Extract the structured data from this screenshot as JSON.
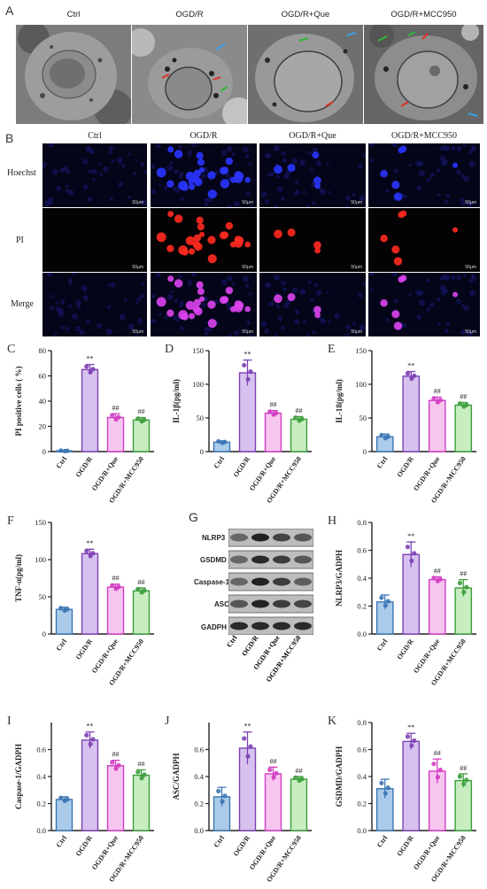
{
  "panel_letters": [
    "A",
    "B",
    "C",
    "D",
    "E",
    "F",
    "G",
    "H",
    "I",
    "J",
    "K"
  ],
  "groups": [
    "Ctrl",
    "OGD/R",
    "OGD/R+Que",
    "OGD/R+MCC950"
  ],
  "fluorescence": {
    "rows": [
      "Hoechst",
      "PI",
      "Merge"
    ],
    "scale_bar": "50μm"
  },
  "blot": {
    "proteins": [
      "NLRP3",
      "GSDMD",
      "Caspase-1",
      "ASC",
      "GADPH"
    ]
  },
  "chart_data": [
    {
      "panel": "C",
      "type": "bar",
      "ylabel": "PI positive cells ( %)",
      "ylim": [
        0,
        80
      ],
      "yticks": [
        0,
        20,
        40,
        60,
        80
      ],
      "categories": [
        "Ctrl",
        "OGD/R",
        "OGD/R+Que",
        "OGD/R+MCC950"
      ],
      "values": [
        0.6,
        65,
        27,
        25
      ],
      "errors": [
        0.4,
        4,
        3,
        2
      ],
      "annotations": [
        "",
        "**",
        "##",
        "##"
      ]
    },
    {
      "panel": "D",
      "type": "bar",
      "ylabel": "IL-1β(pg/ml)",
      "ylim": [
        0,
        150
      ],
      "yticks": [
        0,
        50,
        100,
        150
      ],
      "categories": [
        "Ctrl",
        "OGD/R",
        "OGD/R+Que",
        "OGD/R+MCC950"
      ],
      "values": [
        14,
        117,
        57,
        48
      ],
      "errors": [
        2,
        19,
        4,
        4
      ],
      "annotations": [
        "",
        "**",
        "##",
        "##"
      ]
    },
    {
      "panel": "E",
      "type": "bar",
      "ylabel": "IL-18(pg/ml)",
      "ylim": [
        0,
        150
      ],
      "yticks": [
        0,
        50,
        100,
        150
      ],
      "categories": [
        "Ctrl",
        "OGD/R",
        "OGD/R+Que",
        "OGD/R+MCC950"
      ],
      "values": [
        22,
        112,
        76,
        69
      ],
      "errors": [
        4,
        7,
        5,
        4
      ],
      "annotations": [
        "",
        "**",
        "##",
        "##"
      ]
    },
    {
      "panel": "F",
      "type": "bar",
      "ylabel": "TNF-α(pg/ml)",
      "ylim": [
        0,
        150
      ],
      "yticks": [
        0,
        50,
        100,
        150
      ],
      "categories": [
        "Ctrl",
        "OGD/R",
        "OGD/R+Que",
        "OGD/R+MCC950"
      ],
      "values": [
        33,
        108,
        63,
        58
      ],
      "errors": [
        3,
        6,
        4,
        4
      ],
      "annotations": [
        "",
        "**",
        "##",
        "##"
      ]
    },
    {
      "panel": "H",
      "type": "bar",
      "ylabel": "NLRP3/GADPH",
      "ylim": [
        0,
        0.8
      ],
      "yticks": [
        0.0,
        0.2,
        0.4,
        0.6,
        0.8
      ],
      "categories": [
        "Ctrl",
        "OGD/R",
        "OGD/R+Que",
        "OGD/R+MCC950"
      ],
      "values": [
        0.23,
        0.57,
        0.39,
        0.33
      ],
      "errors": [
        0.05,
        0.09,
        0.02,
        0.06
      ],
      "annotations": [
        "",
        "**",
        "##",
        "##"
      ]
    },
    {
      "panel": "I",
      "type": "bar",
      "ylabel": "Caspase-1/GADPH",
      "ylim": [
        0,
        0.8
      ],
      "yticks": [
        0.0,
        0.2,
        0.4,
        0.6
      ],
      "categories": [
        "Ctrl",
        "OGD/R",
        "OGD/R+Que",
        "OGD/R+MCC950"
      ],
      "values": [
        0.23,
        0.67,
        0.48,
        0.41
      ],
      "errors": [
        0.02,
        0.06,
        0.04,
        0.04
      ],
      "annotations": [
        "",
        "**",
        "##",
        "##"
      ]
    },
    {
      "panel": "J",
      "type": "bar",
      "ylabel": "ASC/GADPH",
      "ylim": [
        0,
        0.8
      ],
      "yticks": [
        0.0,
        0.2,
        0.4,
        0.6
      ],
      "categories": [
        "Ctrl",
        "OGD/R",
        "OGD/R+Que",
        "OGD/R+MCC950"
      ],
      "values": [
        0.25,
        0.61,
        0.42,
        0.38
      ],
      "errors": [
        0.07,
        0.12,
        0.05,
        0.02
      ],
      "annotations": [
        "",
        "**",
        "##",
        "##"
      ]
    },
    {
      "panel": "K",
      "type": "bar",
      "ylabel": "GSDMD/GADPH",
      "ylim": [
        0,
        0.8
      ],
      "yticks": [
        0.0,
        0.2,
        0.4,
        0.6,
        0.8
      ],
      "categories": [
        "Ctrl",
        "OGD/R",
        "OGD/R+Que",
        "OGD/R+MCC950"
      ],
      "values": [
        0.31,
        0.66,
        0.44,
        0.37
      ],
      "errors": [
        0.07,
        0.06,
        0.09,
        0.05
      ],
      "annotations": [
        "",
        "**",
        "##",
        "##"
      ]
    }
  ],
  "colors": {
    "ctrl_fill": "#aacbe9",
    "ctrl_edge": "#3c76b5",
    "ogdr_fill": "#d7c2ef",
    "ogdr_edge": "#7d41b4",
    "que_fill": "#f7c6ef",
    "que_edge": "#d23cc3",
    "mcc_fill": "#c7edc1",
    "mcc_edge": "#3c9e3c"
  }
}
